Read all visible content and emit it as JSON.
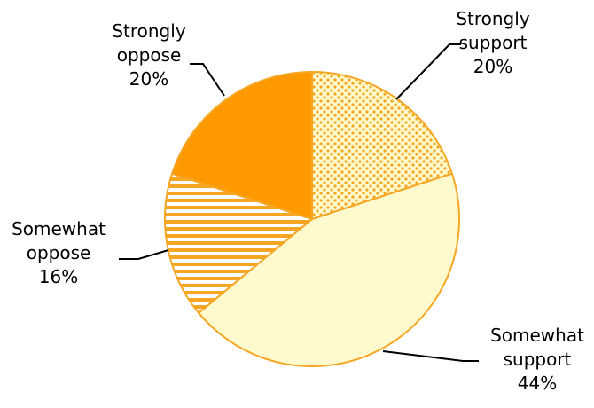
{
  "chart_data": {
    "type": "pie",
    "title": "",
    "start_angle_deg": 0,
    "direction": "clockwise",
    "legend": "none",
    "slices": [
      {
        "label_lines": [
          "Strongly",
          "support"
        ],
        "value": 20,
        "value_label": "20%",
        "fill": "dots",
        "fill_color": "#FFF9CC",
        "pattern_color": "#F5A623"
      },
      {
        "label_lines": [
          "Somewhat",
          "support"
        ],
        "value": 44,
        "value_label": "44%",
        "fill": "solid",
        "fill_color": "#FFFACD"
      },
      {
        "label_lines": [
          "Somewhat",
          "oppose"
        ],
        "value": 16,
        "value_label": "16%",
        "fill": "stripes",
        "fill_color": "#FFFFFF",
        "pattern_color": "#F5A623"
      },
      {
        "label_lines": [
          "Strongly",
          "oppose"
        ],
        "value": 20,
        "value_label": "20%",
        "fill": "solid",
        "fill_color": "#FF9900"
      }
    ],
    "outline_color": "#F5A623",
    "leader_color": "#000000"
  }
}
